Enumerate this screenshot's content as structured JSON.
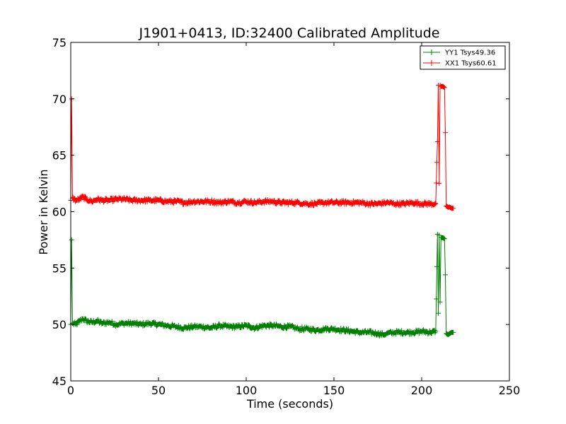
{
  "chart_data": {
    "type": "line",
    "title": "J1901+0413, ID:32400 Calibrated Amplitude",
    "xlabel": "Time (seconds)",
    "ylabel": "Power in Kelvin",
    "xlim": [
      0,
      250
    ],
    "ylim": [
      45,
      75
    ],
    "xticks": [
      0,
      50,
      100,
      150,
      200,
      250
    ],
    "yticks": [
      45,
      50,
      55,
      60,
      65,
      70,
      75
    ],
    "xtick_labels": [
      "0",
      "50",
      "100",
      "150",
      "200",
      "250"
    ],
    "ytick_labels": [
      "45",
      "50",
      "55",
      "60",
      "65",
      "70",
      "75"
    ],
    "grid": false,
    "legend_position": "top-right",
    "series": [
      {
        "name": "YY1 Tsys49.36",
        "color": "#008000",
        "marker": "+",
        "x": [
          0,
          0.5,
          1,
          3,
          5,
          7,
          9,
          12,
          15,
          18,
          22,
          26,
          30,
          35,
          40,
          45,
          50,
          55,
          60,
          65,
          70,
          75,
          80,
          85,
          90,
          95,
          100,
          105,
          110,
          115,
          120,
          125,
          130,
          135,
          140,
          145,
          150,
          155,
          160,
          165,
          170,
          175,
          178,
          180,
          185,
          190,
          195,
          200,
          205,
          208,
          209,
          209.5,
          210,
          210.5,
          211,
          212,
          213,
          213.5,
          214,
          215,
          216,
          217,
          218
        ],
        "y": [
          50.0,
          57.5,
          50.1,
          50.0,
          50.3,
          50.5,
          50.3,
          50.2,
          50.3,
          50.1,
          50.2,
          50.0,
          50.1,
          50.1,
          50.0,
          50.1,
          50.0,
          49.9,
          49.8,
          49.7,
          49.8,
          49.8,
          49.7,
          49.9,
          49.8,
          49.8,
          49.9,
          49.7,
          49.9,
          49.9,
          49.8,
          49.8,
          49.6,
          49.6,
          49.5,
          49.6,
          49.6,
          49.5,
          49.4,
          49.3,
          49.3,
          49.2,
          49.1,
          49.2,
          49.3,
          49.3,
          49.3,
          49.4,
          49.3,
          49.4,
          58.0,
          51.0,
          57.9,
          52.0,
          57.7,
          57.7,
          57.6,
          54.4,
          49.2,
          49.1,
          49.2,
          49.3,
          49.3
        ]
      },
      {
        "name": "XX1 Tsys60.61",
        "color": "#ff0000",
        "marker": "+",
        "x": [
          0,
          0.5,
          1,
          3,
          5,
          7,
          9,
          12,
          15,
          18,
          22,
          26,
          30,
          35,
          40,
          45,
          50,
          55,
          60,
          65,
          70,
          75,
          80,
          85,
          90,
          95,
          100,
          105,
          110,
          115,
          120,
          125,
          130,
          135,
          140,
          145,
          150,
          155,
          160,
          165,
          170,
          175,
          180,
          185,
          190,
          195,
          200,
          205,
          208,
          209,
          209.5,
          210,
          210.5,
          211,
          212,
          213,
          213.5,
          214,
          215,
          216,
          217,
          218
        ],
        "y": [
          61.0,
          70.0,
          61.2,
          61.0,
          61.1,
          61.3,
          61.1,
          60.9,
          61.1,
          61.0,
          61.0,
          61.1,
          61.1,
          61.0,
          61.0,
          61.0,
          61.0,
          60.9,
          60.9,
          60.8,
          60.9,
          60.9,
          60.9,
          60.8,
          60.9,
          60.8,
          60.9,
          60.8,
          60.9,
          60.9,
          60.8,
          60.8,
          60.8,
          60.7,
          60.7,
          60.8,
          60.8,
          60.8,
          60.8,
          60.8,
          60.7,
          60.7,
          60.8,
          60.7,
          60.7,
          60.8,
          60.7,
          60.7,
          60.7,
          66.2,
          71.2,
          62.5,
          71.2,
          71.1,
          71.1,
          71.0,
          67.0,
          60.5,
          60.4,
          60.4,
          60.3,
          60.3
        ]
      }
    ]
  }
}
